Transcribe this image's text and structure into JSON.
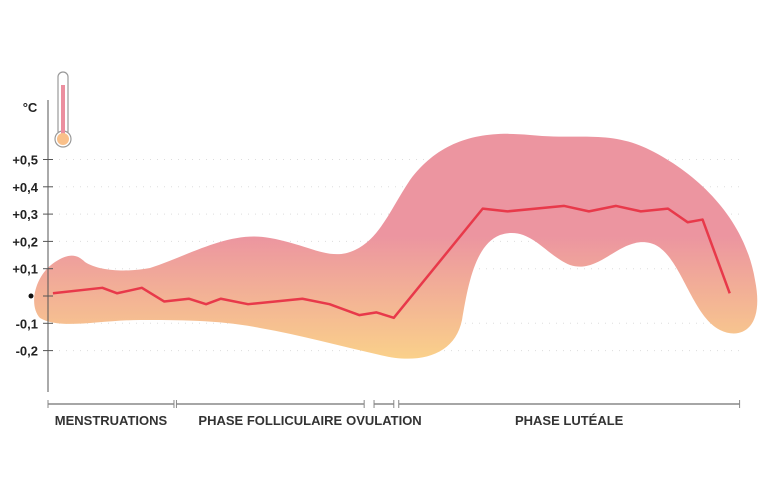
{
  "chart_data": {
    "type": "line",
    "title": "",
    "ylabel": "°C",
    "xlabel": "",
    "ylim": [
      -0.25,
      0.6
    ],
    "xlim": [
      0,
      28
    ],
    "grid": true,
    "y_ticks": [
      {
        "value": 0.5,
        "label": "+0,5"
      },
      {
        "value": 0.4,
        "label": "+0,4"
      },
      {
        "value": 0.3,
        "label": "+0,3"
      },
      {
        "value": 0.2,
        "label": "+0,2"
      },
      {
        "value": 0.1,
        "label": "+0,1"
      },
      {
        "value": 0,
        "label": "•"
      },
      {
        "value": -0.1,
        "label": "-0,1"
      },
      {
        "value": -0.2,
        "label": "-0,2"
      }
    ],
    "phases": [
      {
        "label": "MENSTRUATIONS",
        "start": 0,
        "end": 5.1
      },
      {
        "label": "PHASE FOLLICULAIRE",
        "start": 5.2,
        "end": 12.8
      },
      {
        "label": "OVULATION",
        "start": 13.2,
        "end": 14.0
      },
      {
        "label": "PHASE LUTÉALE",
        "start": 14.2,
        "end": 28
      }
    ],
    "series": [
      {
        "name": "temperature",
        "color": "#e8394a",
        "x": [
          0.2,
          2.2,
          2.8,
          3.8,
          4.7,
          5.7,
          6.4,
          7.0,
          8.1,
          9.2,
          10.3,
          11.4,
          12.6,
          13.3,
          14.0,
          17.6,
          18.6,
          20.9,
          21.9,
          23.0,
          24.0,
          25.1,
          25.9,
          26.5,
          27.6
        ],
        "y": [
          0.01,
          0.03,
          0.01,
          0.03,
          -0.02,
          -0.01,
          -0.03,
          -0.01,
          -0.03,
          -0.02,
          -0.01,
          -0.03,
          -0.07,
          -0.06,
          -0.08,
          0.32,
          0.31,
          0.33,
          0.31,
          0.33,
          0.31,
          0.32,
          0.27,
          0.28,
          0.01
        ]
      }
    ],
    "band_colors": {
      "top": "#ec8f9f",
      "bottom": "#f9cf8a"
    }
  }
}
